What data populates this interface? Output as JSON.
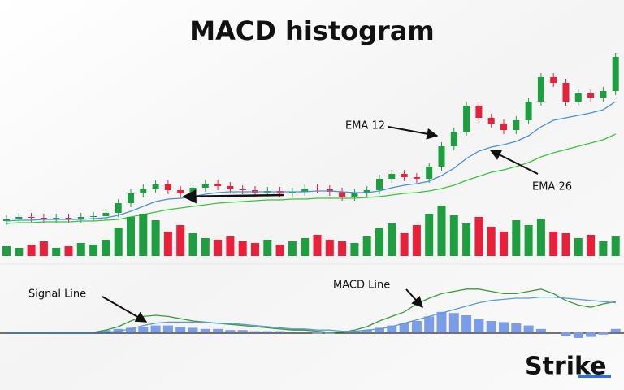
{
  "title": "MACD histogram",
  "logo": "Strike",
  "chart_data": [
    {
      "type": "candlestick",
      "up_color": "#1e9e3e",
      "down_color": "#e8203a",
      "ylim": [
        0,
        300
      ],
      "open": [
        58,
        60,
        63,
        62,
        61,
        62,
        61,
        63,
        64,
        68,
        80,
        92,
        98,
        103,
        96,
        92,
        99,
        104,
        101,
        97,
        96,
        93,
        95,
        92,
        94,
        98,
        97,
        94,
        88,
        92,
        96,
        110,
        116,
        112,
        110,
        125,
        150,
        168,
        200,
        185,
        178,
        170,
        182,
        205,
        235,
        228,
        205,
        215,
        210,
        218
      ],
      "high": [
        65,
        68,
        68,
        67,
        67,
        67,
        68,
        69,
        73,
        85,
        97,
        103,
        108,
        108,
        101,
        104,
        109,
        109,
        106,
        102,
        101,
        100,
        100,
        99,
        103,
        103,
        102,
        99,
        97,
        101,
        115,
        121,
        121,
        117,
        130,
        155,
        173,
        205,
        205,
        190,
        183,
        187,
        210,
        240,
        240,
        233,
        220,
        220,
        223,
        265
      ],
      "low": [
        53,
        55,
        57,
        56,
        56,
        56,
        56,
        58,
        59,
        63,
        75,
        87,
        93,
        91,
        87,
        87,
        94,
        96,
        92,
        91,
        88,
        88,
        87,
        87,
        89,
        92,
        89,
        83,
        83,
        87,
        91,
        105,
        107,
        105,
        105,
        120,
        145,
        163,
        180,
        173,
        165,
        165,
        177,
        200,
        223,
        200,
        200,
        205,
        205,
        213
      ],
      "close": [
        60,
        63,
        62,
        61,
        62,
        61,
        63,
        64,
        68,
        80,
        92,
        98,
        103,
        96,
        92,
        99,
        104,
        101,
        97,
        96,
        93,
        95,
        92,
        94,
        98,
        97,
        94,
        88,
        92,
        96,
        110,
        116,
        112,
        110,
        125,
        150,
        168,
        200,
        185,
        178,
        170,
        182,
        205,
        235,
        228,
        205,
        215,
        210,
        218,
        260
      ],
      "series": [
        {
          "name": "EMA 12",
          "color": "#4a90d9",
          "values": [
            58,
            59,
            59,
            60,
            60,
            60,
            60,
            61,
            62,
            65,
            70,
            76,
            82,
            85,
            86,
            88,
            91,
            93,
            94,
            94,
            94,
            94,
            94,
            94,
            94,
            95,
            95,
            94,
            93,
            93,
            95,
            99,
            102,
            104,
            107,
            114,
            123,
            135,
            144,
            149,
            152,
            156,
            163,
            174,
            182,
            185,
            188,
            191,
            195,
            205
          ]
        },
        {
          "name": "EMA 26",
          "color": "#3cc43c",
          "values": [
            55,
            56,
            56,
            57,
            57,
            57,
            58,
            58,
            59,
            60,
            63,
            66,
            69,
            72,
            74,
            76,
            78,
            80,
            81,
            82,
            83,
            84,
            84,
            85,
            85,
            86,
            86,
            86,
            86,
            87,
            88,
            90,
            92,
            93,
            95,
            98,
            102,
            108,
            113,
            118,
            121,
            125,
            130,
            137,
            142,
            146,
            150,
            154,
            158,
            165
          ]
        }
      ]
    },
    {
      "type": "bar",
      "ylim": [
        0,
        80
      ],
      "values": [
        12,
        10,
        14,
        18,
        10,
        12,
        16,
        14,
        20,
        35,
        48,
        52,
        44,
        30,
        38,
        28,
        22,
        20,
        24,
        18,
        16,
        20,
        14,
        18,
        22,
        26,
        20,
        18,
        16,
        24,
        34,
        40,
        28,
        38,
        52,
        62,
        50,
        40,
        48,
        36,
        30,
        44,
        38,
        46,
        30,
        28,
        22,
        26,
        18,
        24
      ]
    },
    {
      "type": "macd",
      "ylim": [
        -15,
        45
      ],
      "histogram_color": "#7b9de8",
      "histogram": [
        0,
        0,
        0,
        0,
        0,
        0,
        0,
        0,
        2,
        3,
        4,
        5,
        6,
        6,
        5,
        4,
        3,
        3,
        2,
        2,
        1,
        1,
        1,
        0,
        0,
        -1,
        -1,
        0,
        1,
        2,
        4,
        6,
        8,
        10,
        14,
        18,
        17,
        15,
        12,
        10,
        9,
        8,
        6,
        3,
        0,
        -3,
        -5,
        -4,
        -2,
        3
      ],
      "series": [
        {
          "name": "MACD Line",
          "color": "#3a9a3a",
          "values": [
            0,
            0,
            0,
            0,
            0,
            0,
            0,
            0,
            2,
            5,
            10,
            14,
            15,
            14,
            12,
            10,
            9,
            8,
            7,
            6,
            5,
            4,
            3,
            2,
            2,
            1,
            0,
            0,
            2,
            5,
            10,
            14,
            18,
            25,
            30,
            34,
            36,
            38,
            38,
            36,
            34,
            34,
            36,
            38,
            34,
            28,
            24,
            22,
            25,
            27
          ]
        },
        {
          "name": "Signal Line",
          "color": "#5b9bd5",
          "values": [
            0,
            0,
            0,
            0,
            0,
            0,
            0,
            0,
            0,
            1,
            3,
            6,
            8,
            9,
            9,
            9,
            9,
            8,
            8,
            7,
            6,
            5,
            4,
            3,
            3,
            2,
            2,
            1,
            1,
            2,
            3,
            5,
            8,
            11,
            14,
            17,
            20,
            23,
            26,
            28,
            29,
            30,
            30,
            31,
            31,
            30,
            29,
            28,
            27,
            26
          ]
        }
      ]
    }
  ]
}
